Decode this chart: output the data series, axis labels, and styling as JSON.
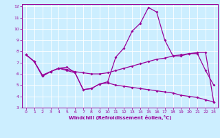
{
  "xlabel": "Windchill (Refroidissement éolien,°C)",
  "bg_color": "#cceeff",
  "line_color": "#990099",
  "grid_color": "#ffffff",
  "xlim": [
    -0.5,
    23.5
  ],
  "ylim": [
    3,
    12.2
  ],
  "xticks": [
    0,
    1,
    2,
    3,
    4,
    5,
    6,
    7,
    8,
    9,
    10,
    11,
    12,
    13,
    14,
    15,
    16,
    17,
    18,
    19,
    20,
    21,
    22,
    23
  ],
  "yticks": [
    3,
    4,
    5,
    6,
    7,
    8,
    9,
    10,
    11,
    12
  ],
  "line1_x": [
    0,
    1,
    2,
    3,
    4,
    5,
    6,
    7,
    8,
    9,
    10,
    11,
    12,
    13,
    14,
    15,
    16,
    17,
    18,
    19,
    20,
    21,
    22,
    23
  ],
  "line1_y": [
    7.7,
    7.1,
    5.8,
    6.2,
    6.5,
    6.6,
    6.1,
    4.6,
    4.7,
    5.1,
    5.3,
    7.5,
    8.3,
    9.8,
    10.5,
    11.9,
    11.5,
    9.0,
    7.6,
    7.6,
    7.8,
    7.8,
    6.3,
    5.0
  ],
  "line2_x": [
    0,
    1,
    2,
    3,
    4,
    5,
    6,
    7,
    8,
    9,
    10,
    11,
    12,
    13,
    14,
    15,
    16,
    17,
    18,
    19,
    20,
    21,
    22,
    23
  ],
  "line2_y": [
    7.7,
    7.1,
    5.9,
    6.2,
    6.5,
    6.4,
    6.2,
    6.1,
    6.0,
    6.0,
    6.1,
    6.3,
    6.5,
    6.7,
    6.9,
    7.1,
    7.3,
    7.4,
    7.6,
    7.7,
    7.8,
    7.9,
    7.9,
    3.5
  ],
  "line3_x": [
    0,
    1,
    2,
    3,
    4,
    5,
    6,
    7,
    8,
    9,
    10,
    11,
    12,
    13,
    14,
    15,
    16,
    17,
    18,
    19,
    20,
    21,
    22,
    23
  ],
  "line3_y": [
    7.7,
    7.1,
    5.8,
    6.2,
    6.5,
    6.3,
    6.1,
    4.6,
    4.7,
    5.1,
    5.2,
    5.0,
    4.9,
    4.8,
    4.7,
    4.6,
    4.5,
    4.4,
    4.3,
    4.1,
    4.0,
    3.9,
    3.7,
    3.5
  ]
}
